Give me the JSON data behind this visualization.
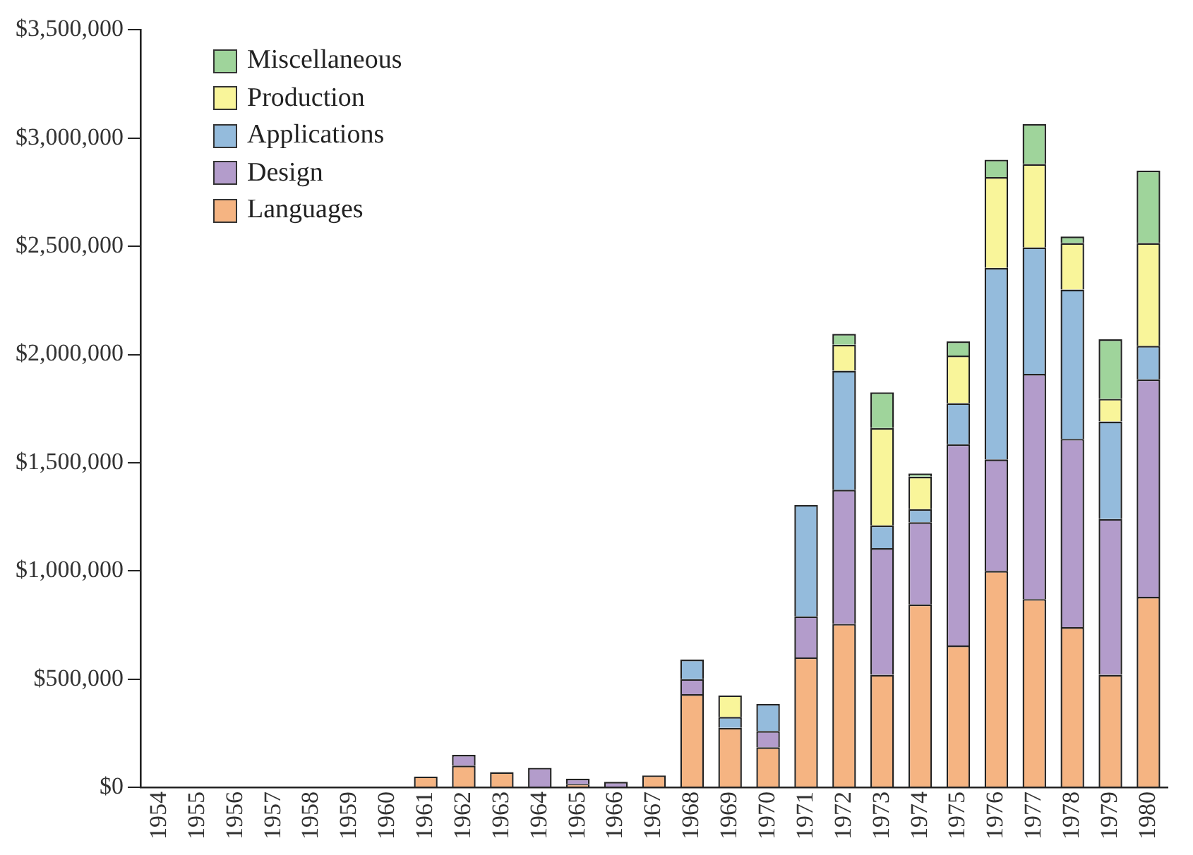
{
  "chart_data": {
    "type": "bar",
    "stacked": true,
    "legend": "top left",
    "grid": false,
    "categories": [
      "1954",
      "1955",
      "1956",
      "1957",
      "1958",
      "1959",
      "1960",
      "1961",
      "1962",
      "1963",
      "1964",
      "1965",
      "1966",
      "1967",
      "1968",
      "1969",
      "1970",
      "1971",
      "1972",
      "1973",
      "1974",
      "1975",
      "1976",
      "1977",
      "1978",
      "1979",
      "1980"
    ],
    "ylim": [
      0,
      3500000
    ],
    "yticks": [
      {
        "value": 0,
        "label": "$0"
      },
      {
        "value": 500000,
        "label": "$500,000"
      },
      {
        "value": 1000000,
        "label": "$1,000,000"
      },
      {
        "value": 1500000,
        "label": "$1,500,000"
      },
      {
        "value": 2000000,
        "label": "$2,000,000"
      },
      {
        "value": 2500000,
        "label": "$2,500,000"
      },
      {
        "value": 3000000,
        "label": "$3,000,000"
      },
      {
        "value": 3500000,
        "label": "$3,500,000"
      }
    ],
    "series": [
      {
        "name": "Languages",
        "color": "#f5b482",
        "values": [
          null,
          null,
          null,
          null,
          null,
          null,
          null,
          50000,
          100000,
          70000,
          null,
          15000,
          null,
          55000,
          430000,
          275000,
          185000,
          600000,
          755000,
          520000,
          845000,
          655000,
          1000000,
          870000,
          740000,
          520000,
          880000
        ]
      },
      {
        "name": "Design",
        "color": "#b39ccb",
        "values": [
          null,
          null,
          null,
          null,
          null,
          null,
          null,
          null,
          50000,
          null,
          90000,
          25000,
          25000,
          null,
          70000,
          null,
          75000,
          190000,
          620000,
          585000,
          380000,
          930000,
          515000,
          1040000,
          870000,
          720000,
          1005000
        ]
      },
      {
        "name": "Applications",
        "color": "#94bbdc",
        "values": [
          null,
          null,
          null,
          null,
          null,
          null,
          null,
          null,
          null,
          null,
          null,
          null,
          null,
          null,
          90000,
          50000,
          125000,
          515000,
          550000,
          105000,
          60000,
          190000,
          885000,
          585000,
          690000,
          450000,
          155000
        ]
      },
      {
        "name": "Production",
        "color": "#f9f59a",
        "values": [
          null,
          null,
          null,
          null,
          null,
          null,
          null,
          null,
          null,
          null,
          null,
          null,
          null,
          null,
          null,
          100000,
          null,
          null,
          120000,
          450000,
          150000,
          220000,
          420000,
          385000,
          215000,
          105000,
          475000
        ]
      },
      {
        "name": "Miscellaneous",
        "color": "#9fd49b",
        "values": [
          null,
          null,
          null,
          null,
          null,
          null,
          null,
          null,
          null,
          null,
          null,
          null,
          null,
          null,
          null,
          null,
          null,
          null,
          50000,
          165000,
          15000,
          65000,
          80000,
          185000,
          30000,
          275000,
          335000
        ]
      }
    ]
  }
}
